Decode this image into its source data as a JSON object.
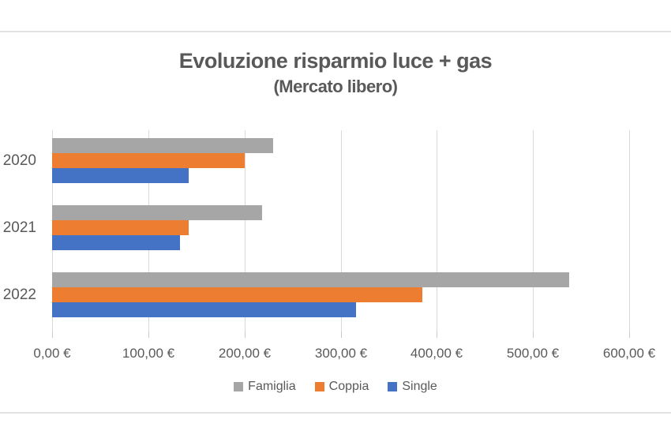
{
  "page": {
    "background": "#ffffff",
    "divider_color": "#e2e2e2"
  },
  "chart_data": {
    "type": "bar",
    "orientation": "horizontal",
    "title": "Evoluzione risparmio luce + gas",
    "subtitle": "(Mercato libero)",
    "categories": [
      "2020",
      "2021",
      "2022"
    ],
    "series": [
      {
        "name": "Famiglia",
        "color": "#A6A6A6",
        "values": [
          230,
          218,
          538
        ]
      },
      {
        "name": "Coppia",
        "color": "#ED7D31",
        "values": [
          200,
          142,
          385
        ]
      },
      {
        "name": "Single",
        "color": "#4472C4",
        "values": [
          142,
          133,
          316
        ]
      }
    ],
    "xlim": [
      0,
      600
    ],
    "x_ticks": [
      0,
      100,
      200,
      300,
      400,
      500,
      600
    ],
    "x_tick_labels": [
      "0,00 €",
      "100,00 €",
      "200,00 €",
      "300,00 €",
      "400,00 €",
      "500,00 €",
      "600,00 €"
    ],
    "grid": true,
    "legend_position": "bottom",
    "text_color": "#595959",
    "gridline_color": "#D9D9D9"
  }
}
